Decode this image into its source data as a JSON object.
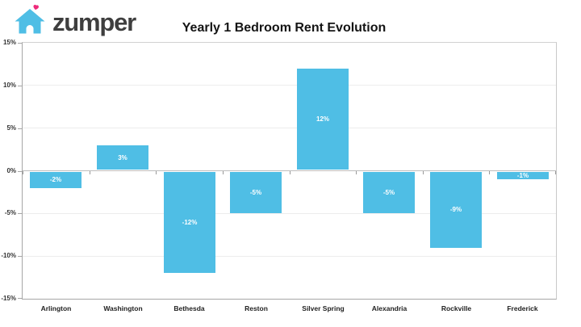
{
  "header": {
    "logo": {
      "wordmark": "zumper",
      "house_icon": "house-icon",
      "heart_icon": "heart-icon",
      "house_color": "#4fbee5",
      "heart_color": "#ee2a7b",
      "wordmark_color": "#3e3e3e"
    },
    "title": "Yearly 1 Bedroom Rent Evolution"
  },
  "chart_data": {
    "type": "bar",
    "title": "Yearly 1 Bedroom Rent Evolution",
    "categories": [
      "Arlington",
      "Washington",
      "Bethesda",
      "Reston",
      "Silver Spring",
      "Alexandria",
      "Rockville",
      "Frederick"
    ],
    "values": [
      -2,
      3,
      -12,
      -5,
      12,
      -5,
      -9,
      -1
    ],
    "bar_labels": [
      "-2%",
      "3%",
      "-12%",
      "-5%",
      "12%",
      "-5%",
      "-9%",
      "-1%"
    ],
    "xlabel": "",
    "ylabel": "",
    "ylim": [
      -15,
      15
    ],
    "ytick_step": 5,
    "ytick_labels": [
      "15%",
      "10%",
      "5%",
      "0%",
      "-5%",
      "-10%",
      "-15%"
    ],
    "grid": true,
    "legend": "none",
    "bar_color": "#4fbee5",
    "bar_label_color": "#ffffff"
  }
}
